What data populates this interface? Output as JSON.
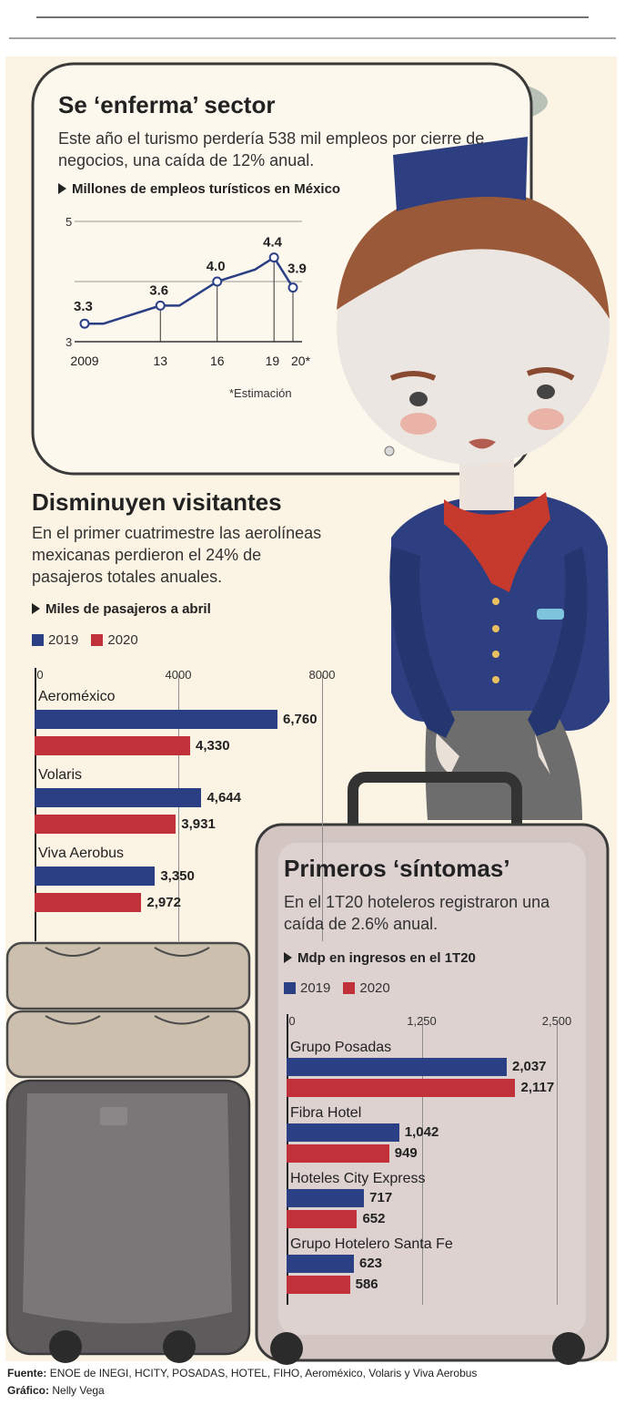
{
  "colors": {
    "series_2019": "#2a3f84",
    "series_2020": "#c0313a",
    "bg_card": "#fdf6ea",
    "suitcase": "#cfc3c0"
  },
  "section1": {
    "title": "Se ‘enferma’ sector",
    "subtitle": "Este año el turismo perdería 538 mil empleos por cierre de negocios, una caída de 12% anual.",
    "chart_label": "Millones de empleos turísticos en México",
    "note": "*Estimación"
  },
  "section2": {
    "title": "Disminuyen visitantes",
    "subtitle": "En el primer cuatrimestre las aerolíneas mexicanas perdieron el 24% de pasajeros totales anuales.",
    "chart_label": "Miles de pasajeros a abril",
    "legend": [
      "2019",
      "2020"
    ]
  },
  "section3": {
    "title": "Primeros ‘síntomas’",
    "subtitle": "En el 1T20 hoteleros registraron una caída de 2.6% anual.",
    "chart_label": "Mdp en ingresos en el 1T20",
    "legend": [
      "2019",
      "2020"
    ]
  },
  "footer": {
    "source_label": "Fuente:",
    "source": "ENOE de INEGI, HCITY, POSADAS, HOTEL, FIHO, Aeroméxico, Volaris y Viva Aerobus",
    "credit_label": "Gráfico:",
    "credit": "Nelly Vega"
  },
  "chart_data": [
    {
      "type": "line",
      "title": "Millones de empleos turísticos en México",
      "x": [
        2009,
        2010,
        2011,
        2012,
        2013,
        2014,
        2015,
        2016,
        2017,
        2018,
        2019,
        2020
      ],
      "values": [
        3.3,
        3.3,
        3.4,
        3.5,
        3.6,
        3.6,
        3.8,
        4.0,
        4.1,
        4.2,
        4.4,
        3.9
      ],
      "data_labels": [
        {
          "x": 2009,
          "label": "3.3"
        },
        {
          "x": 2013,
          "label": "3.6"
        },
        {
          "x": 2016,
          "label": "4.0"
        },
        {
          "x": 2019,
          "label": "4.4"
        },
        {
          "x": 2020,
          "label": "3.9"
        }
      ],
      "x_tick_labels": [
        "2009",
        "13",
        "16",
        "19",
        "20*"
      ],
      "y_tick_labels": [
        "3",
        "5"
      ],
      "ylim": [
        3,
        5
      ],
      "grid": true
    },
    {
      "type": "bar",
      "orientation": "horizontal",
      "title": "Miles de pasajeros a abril",
      "categories": [
        "Aeroméxico",
        "Volaris",
        "Viva Aerobus"
      ],
      "series": [
        {
          "name": "2019",
          "values": [
            6760,
            4644,
            3350
          ],
          "labels": [
            "6,760",
            "4,644",
            "3,350"
          ]
        },
        {
          "name": "2020",
          "values": [
            4330,
            3931,
            2972
          ],
          "labels": [
            "4,330",
            "3,931",
            "2,972"
          ]
        }
      ],
      "x_tick_labels": [
        "0",
        "4000",
        "8000"
      ],
      "xlim": [
        0,
        8000
      ],
      "legend": "top-left"
    },
    {
      "type": "bar",
      "orientation": "horizontal",
      "title": "Mdp en ingresos en el 1T20",
      "categories": [
        "Grupo Posadas",
        "Fibra Hotel",
        "Hoteles City Express",
        "Grupo Hotelero Santa Fe"
      ],
      "series": [
        {
          "name": "2019",
          "values": [
            2037,
            1042,
            717,
            623
          ],
          "labels": [
            "2,037",
            "1,042",
            "717",
            "623"
          ]
        },
        {
          "name": "2020",
          "values": [
            2117,
            949,
            652,
            586
          ],
          "labels": [
            "2,117",
            "949",
            "652",
            "586"
          ]
        }
      ],
      "x_tick_labels": [
        "0",
        "1,250",
        "2,500"
      ],
      "xlim": [
        0,
        2500
      ],
      "legend": "top-left"
    }
  ]
}
